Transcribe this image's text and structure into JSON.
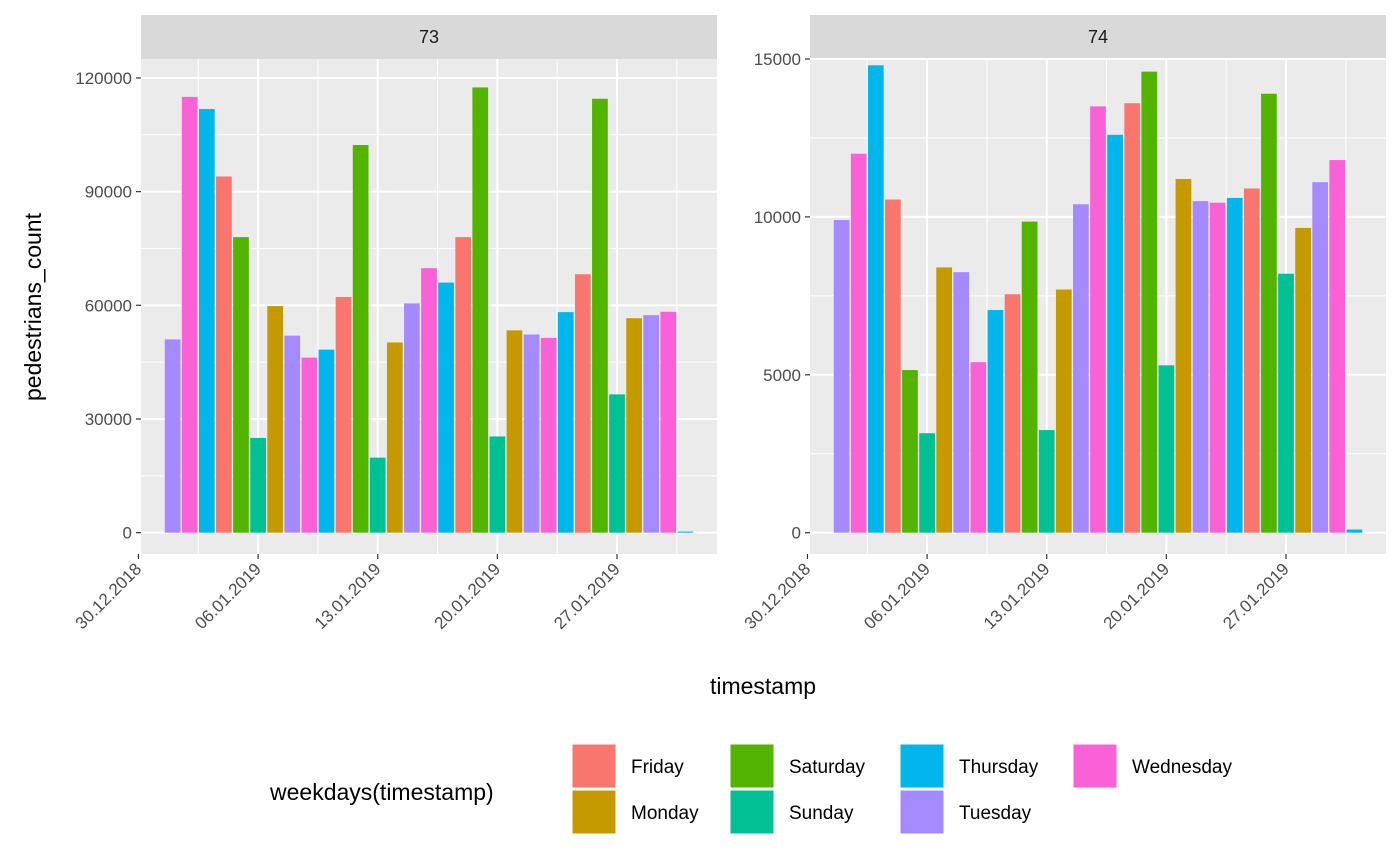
{
  "chart_data": {
    "type": "bar",
    "xlabel": "timestamp",
    "ylabel": "pedestrians_count",
    "x_ticks": [
      "30.12.2018",
      "06.01.2019",
      "13.01.2019",
      "20.01.2019",
      "27.01.2019"
    ],
    "x_tick_dates": [
      "2018-12-30",
      "2019-01-06",
      "2019-01-13",
      "2019-01-20",
      "2019-01-27"
    ],
    "x_range": [
      "2018-12-30",
      "2019-02-01"
    ],
    "legend": {
      "title": "weekdays(timestamp)",
      "position": "bottom",
      "entries": [
        {
          "name": "Friday",
          "color": "#F8766D"
        },
        {
          "name": "Monday",
          "color": "#C49A00"
        },
        {
          "name": "Saturday",
          "color": "#53B400"
        },
        {
          "name": "Sunday",
          "color": "#00C094"
        },
        {
          "name": "Thursday",
          "color": "#00B6EB"
        },
        {
          "name": "Tuesday",
          "color": "#A58AFF"
        },
        {
          "name": "Wednesday",
          "color": "#FB61D7"
        }
      ]
    },
    "panels": [
      {
        "label": "73",
        "ylim": [
          0,
          125000
        ],
        "y_ticks": [
          0,
          30000,
          60000,
          90000,
          120000
        ],
        "dates": [
          "2019-01-01",
          "2019-01-02",
          "2019-01-03",
          "2019-01-04",
          "2019-01-05",
          "2019-01-06",
          "2019-01-07",
          "2019-01-08",
          "2019-01-09",
          "2019-01-10",
          "2019-01-11",
          "2019-01-12",
          "2019-01-13",
          "2019-01-14",
          "2019-01-15",
          "2019-01-16",
          "2019-01-17",
          "2019-01-18",
          "2019-01-19",
          "2019-01-20",
          "2019-01-21",
          "2019-01-22",
          "2019-01-23",
          "2019-01-24",
          "2019-01-25",
          "2019-01-26",
          "2019-01-27",
          "2019-01-28",
          "2019-01-29",
          "2019-01-30",
          "2019-01-31"
        ],
        "weekdays": [
          "Tuesday",
          "Wednesday",
          "Thursday",
          "Friday",
          "Saturday",
          "Sunday",
          "Monday",
          "Tuesday",
          "Wednesday",
          "Thursday",
          "Friday",
          "Saturday",
          "Sunday",
          "Monday",
          "Tuesday",
          "Wednesday",
          "Thursday",
          "Friday",
          "Saturday",
          "Sunday",
          "Monday",
          "Tuesday",
          "Wednesday",
          "Thursday",
          "Friday",
          "Saturday",
          "Sunday",
          "Monday",
          "Tuesday",
          "Wednesday",
          "Thursday"
        ],
        "values": [
          51000,
          115000,
          111800,
          94000,
          78000,
          25000,
          59800,
          52000,
          46200,
          48300,
          62200,
          102300,
          19800,
          50200,
          60500,
          69800,
          66000,
          78000,
          117500,
          25400,
          53400,
          52300,
          51400,
          58200,
          68200,
          114500,
          36500,
          56600,
          57400,
          58300,
          300
        ]
      },
      {
        "label": "74",
        "ylim": [
          0,
          15000
        ],
        "y_ticks": [
          0,
          5000,
          10000,
          15000
        ],
        "dates": [
          "2019-01-01",
          "2019-01-02",
          "2019-01-03",
          "2019-01-04",
          "2019-01-05",
          "2019-01-06",
          "2019-01-07",
          "2019-01-08",
          "2019-01-09",
          "2019-01-10",
          "2019-01-11",
          "2019-01-12",
          "2019-01-13",
          "2019-01-14",
          "2019-01-15",
          "2019-01-16",
          "2019-01-17",
          "2019-01-18",
          "2019-01-19",
          "2019-01-20",
          "2019-01-21",
          "2019-01-22",
          "2019-01-23",
          "2019-01-24",
          "2019-01-25",
          "2019-01-26",
          "2019-01-27",
          "2019-01-28",
          "2019-01-29",
          "2019-01-30",
          "2019-01-31"
        ],
        "weekdays": [
          "Tuesday",
          "Wednesday",
          "Thursday",
          "Friday",
          "Saturday",
          "Sunday",
          "Monday",
          "Tuesday",
          "Wednesday",
          "Thursday",
          "Friday",
          "Saturday",
          "Sunday",
          "Monday",
          "Tuesday",
          "Wednesday",
          "Thursday",
          "Friday",
          "Saturday",
          "Sunday",
          "Monday",
          "Tuesday",
          "Wednesday",
          "Thursday",
          "Friday",
          "Saturday",
          "Sunday",
          "Monday",
          "Tuesday",
          "Wednesday",
          "Thursday"
        ],
        "values": [
          9900,
          12000,
          14800,
          10550,
          5150,
          3150,
          8400,
          8250,
          5400,
          7050,
          7550,
          9850,
          3250,
          7700,
          10400,
          13500,
          12600,
          13600,
          14600,
          5300,
          11200,
          10500,
          10450,
          10600,
          10900,
          13900,
          8200,
          9650,
          11100,
          11800,
          100
        ]
      }
    ]
  }
}
